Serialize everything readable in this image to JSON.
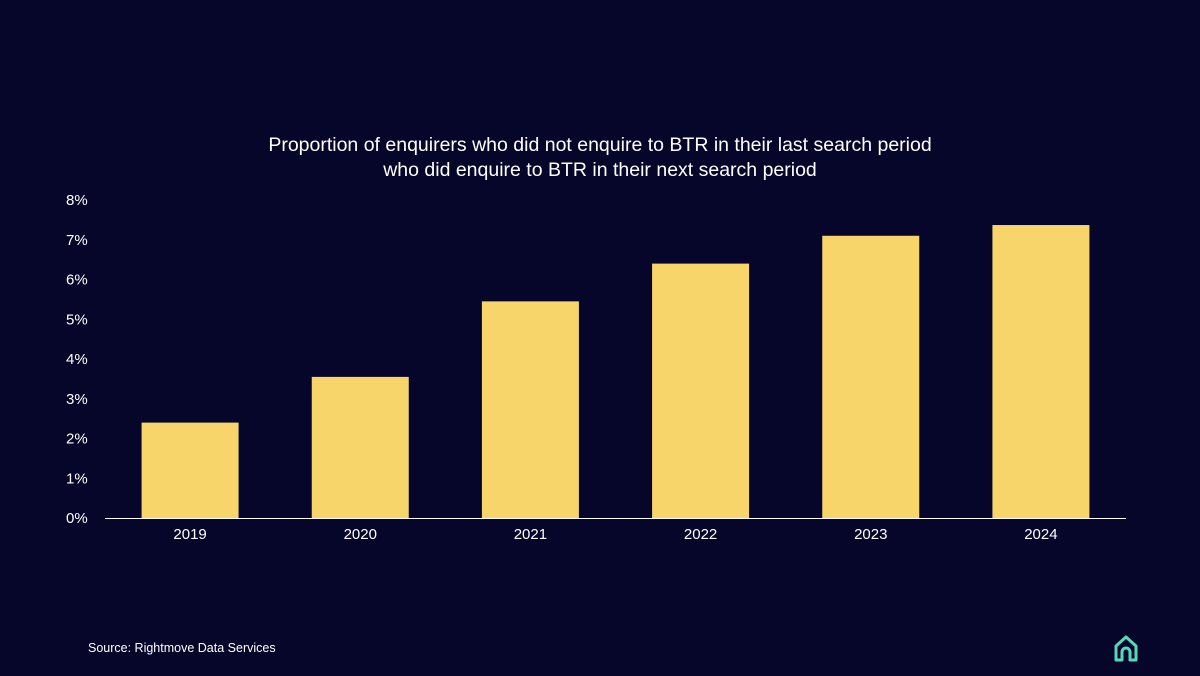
{
  "chart_data": {
    "type": "bar",
    "title_lines": [
      "Proportion of enquirers who did not enquire to BTR in their last search period",
      "who did enquire to BTR in their next search period"
    ],
    "categories": [
      "2019",
      "2020",
      "2021",
      "2022",
      "2023",
      "2024"
    ],
    "values": [
      2.4,
      3.55,
      5.45,
      6.4,
      7.1,
      7.37
    ],
    "ylim": [
      0,
      8
    ],
    "yticks": [
      0,
      1,
      2,
      3,
      4,
      5,
      6,
      7,
      8
    ],
    "ytick_labels": [
      "0%",
      "1%",
      "2%",
      "3%",
      "4%",
      "5%",
      "6%",
      "7%",
      "8%"
    ],
    "xlabel": "",
    "ylabel": "",
    "grid": false,
    "bar_color": "#f7d56a",
    "axis_color": "#ffffff"
  },
  "footer": {
    "source": "Source: Rightmove Data Services"
  },
  "logo": {
    "icon": "house-icon",
    "color": "#58d6b8"
  }
}
